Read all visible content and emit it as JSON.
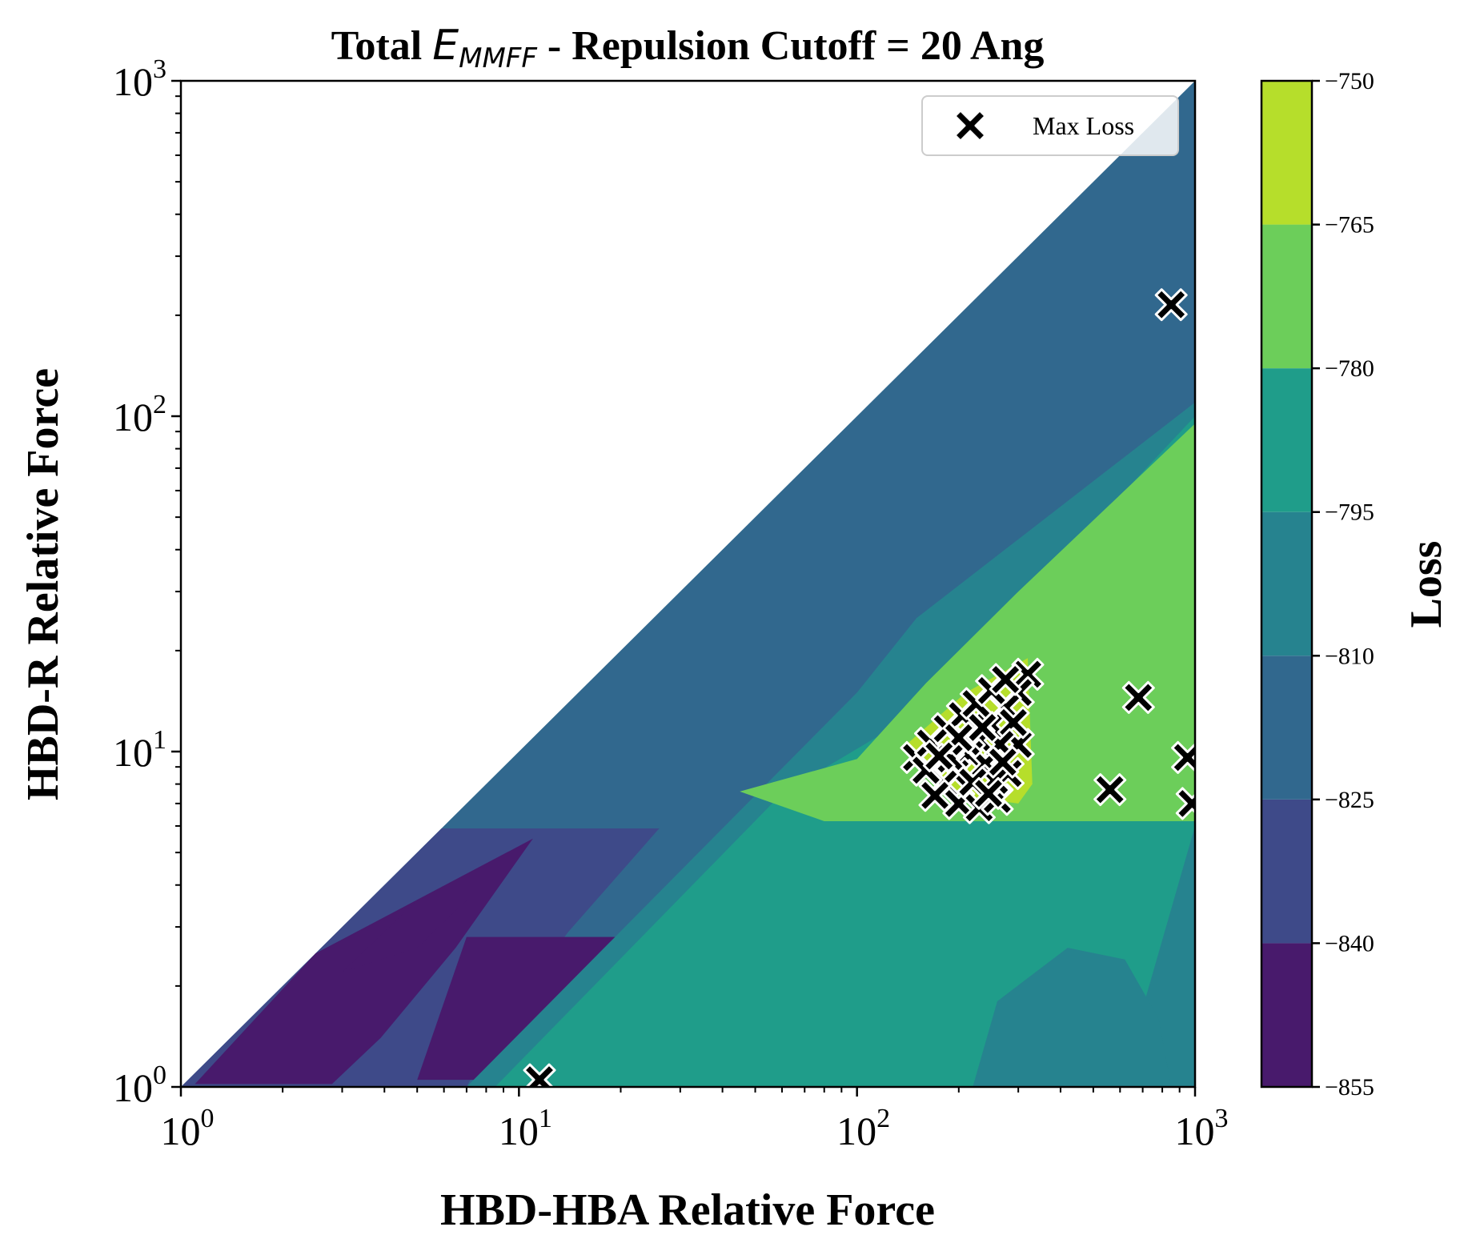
{
  "chart_data": {
    "type": "contourf",
    "title": {
      "prefix": "Total ",
      "symbol": "E",
      "subscript": "MMFF",
      "suffix": " - Repulsion Cutoff = 20 Ang"
    },
    "xlabel": "HBD-HBA Relative Force",
    "ylabel": "HBD-R Relative Force",
    "x_scale": "log",
    "y_scale": "log",
    "xlim": [
      1,
      1000
    ],
    "ylim": [
      1,
      1000
    ],
    "x_ticks": [
      {
        "base": "10",
        "exp": "0"
      },
      {
        "base": "10",
        "exp": "1"
      },
      {
        "base": "10",
        "exp": "2"
      },
      {
        "base": "10",
        "exp": "3"
      }
    ],
    "y_ticks": [
      {
        "base": "10",
        "exp": "0"
      },
      {
        "base": "10",
        "exp": "1"
      },
      {
        "base": "10",
        "exp": "2"
      },
      {
        "base": "10",
        "exp": "3"
      }
    ],
    "colorbar": {
      "label": "Loss",
      "levels": [
        -855,
        -840,
        -825,
        -810,
        -795,
        -780,
        -765,
        -750
      ],
      "tick_labels": [
        "−855",
        "−840",
        "−825",
        "−810",
        "−795",
        "−780",
        "−765",
        "−750"
      ],
      "colors": [
        "#481a6c",
        "#3e4a89",
        "#31688e",
        "#26838f",
        "#1f9d8a",
        "#6cce5a",
        "#b6de2b",
        "#dde318"
      ]
    },
    "regions": [
      {
        "level_index": 2,
        "polygon": [
          [
            1,
            1
          ],
          [
            1000,
            1000
          ],
          [
            1000,
            1
          ],
          [
            1,
            1
          ]
        ]
      },
      {
        "level_index": 1,
        "polygon": [
          [
            1,
            1
          ],
          [
            5.9,
            5.9
          ],
          [
            26,
            5.9
          ],
          [
            14,
            2.9
          ],
          [
            9,
            1.6
          ],
          [
            7,
            1
          ],
          [
            1,
            1
          ]
        ]
      },
      {
        "level_index": 0,
        "polygon": [
          [
            1.1,
            1.02
          ],
          [
            2.5,
            2.5
          ],
          [
            11,
            5.5
          ],
          [
            6.5,
            2.6
          ],
          [
            3.9,
            1.4
          ],
          [
            2.8,
            1.02
          ],
          [
            1.1,
            1.02
          ]
        ]
      },
      {
        "level_index": 0,
        "polygon": [
          [
            3,
            2.2
          ],
          [
            5,
            3.6
          ],
          [
            7,
            3.6
          ],
          [
            5,
            2.6
          ],
          [
            3,
            2.2
          ]
        ]
      },
      {
        "level_index": 0,
        "polygon": [
          [
            5,
            1.05
          ],
          [
            7,
            2.8
          ],
          [
            25,
            2.8
          ],
          [
            18,
            2
          ],
          [
            13,
            1.4
          ],
          [
            9.5,
            1.05
          ],
          [
            5,
            1.05
          ]
        ]
      },
      {
        "level_index": 3,
        "polygon": [
          [
            7,
            1
          ],
          [
            100,
            15
          ],
          [
            150,
            25
          ],
          [
            1000,
            110
          ],
          [
            1000,
            1
          ],
          [
            7,
            1
          ]
        ]
      },
      {
        "level_index": 4,
        "polygon": [
          [
            8.5,
            1
          ],
          [
            60,
            7.5
          ],
          [
            150,
            13
          ],
          [
            1000,
            100
          ],
          [
            1000,
            6
          ],
          [
            600,
            1
          ],
          [
            8.5,
            1
          ]
        ]
      },
      {
        "level_index": 3,
        "polygon": [
          [
            220,
            1
          ],
          [
            260,
            1.8
          ],
          [
            420,
            2.6
          ],
          [
            620,
            2.4
          ],
          [
            780,
            1.6
          ],
          [
            850,
            1
          ],
          [
            220,
            1
          ]
        ]
      },
      {
        "level_index": 5,
        "polygon": [
          [
            45,
            7.6
          ],
          [
            100,
            9.5
          ],
          [
            160,
            16
          ],
          [
            300,
            30
          ],
          [
            1000,
            95
          ],
          [
            1000,
            6.2
          ],
          [
            80,
            6.2
          ],
          [
            45,
            7.6
          ]
        ]
      },
      {
        "level_index": 6,
        "polygon": [
          [
            140,
            10.5
          ],
          [
            210,
            15
          ],
          [
            320,
            19
          ],
          [
            330,
            8
          ],
          [
            300,
            7
          ],
          [
            180,
            7.5
          ],
          [
            140,
            10.5
          ]
        ]
      }
    ],
    "scatter": {
      "name": "Max Loss",
      "marker": "X",
      "color": "#000000",
      "points": [
        [
          850,
          215
        ],
        [
          320,
          17
        ],
        [
          680,
          14.5
        ],
        [
          300,
          10.5
        ],
        [
          560,
          7.7
        ],
        [
          950,
          9.6
        ],
        [
          980,
          7
        ],
        [
          11.5,
          1.05
        ],
        [
          300,
          15
        ],
        [
          275,
          13.5
        ],
        [
          250,
          12
        ],
        [
          230,
          10.8
        ],
        [
          215,
          9.8
        ],
        [
          290,
          12.2
        ],
        [
          265,
          10.5
        ],
        [
          240,
          9.2
        ],
        [
          195,
          8.6
        ],
        [
          180,
          8
        ],
        [
          170,
          7.4
        ],
        [
          200,
          7
        ],
        [
          230,
          6.8
        ],
        [
          260,
          7.2
        ],
        [
          280,
          8.6
        ],
        [
          255,
          8.2
        ],
        [
          150,
          9.6
        ],
        [
          165,
          10.6
        ],
        [
          185,
          11.7
        ],
        [
          205,
          12.8
        ],
        [
          225,
          13.9
        ],
        [
          250,
          15.2
        ],
        [
          275,
          16.4
        ],
        [
          160,
          8.8
        ],
        [
          190,
          9.5
        ],
        [
          210,
          10.7
        ],
        [
          235,
          11.8
        ],
        [
          220,
          8.1
        ],
        [
          245,
          7.5
        ],
        [
          200,
          11
        ],
        [
          175,
          9.7
        ],
        [
          270,
          9.3
        ]
      ]
    },
    "legend": {
      "location": "upper right",
      "entries": [
        "Max Loss"
      ]
    }
  }
}
